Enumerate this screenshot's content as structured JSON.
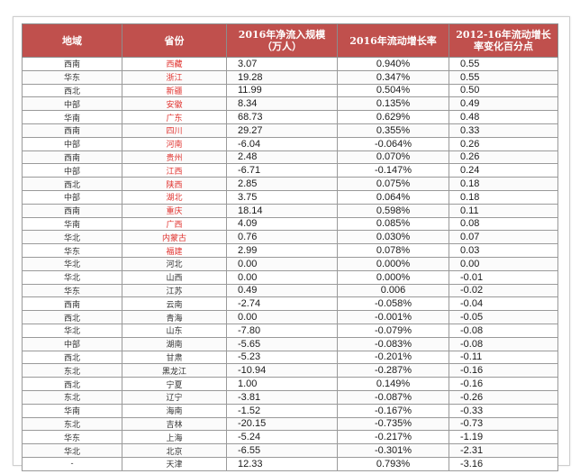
{
  "headers": [
    "地域",
    "省份",
    "2016年净流入规模（万人）",
    "2016年流动增长率",
    "2012-16年流动增长率变化百分点"
  ],
  "rows": [
    {
      "region": "西南",
      "province": "西藏",
      "net": "3.07",
      "rate": "0.940%",
      "change": "0.55",
      "hl": true
    },
    {
      "region": "华东",
      "province": "浙江",
      "net": "19.28",
      "rate": "0.347%",
      "change": "0.55",
      "hl": true
    },
    {
      "region": "西北",
      "province": "新疆",
      "net": "11.99",
      "rate": "0.504%",
      "change": "0.50",
      "hl": true
    },
    {
      "region": "中部",
      "province": "安徽",
      "net": "8.34",
      "rate": "0.135%",
      "change": "0.49",
      "hl": true
    },
    {
      "region": "华南",
      "province": "广东",
      "net": "68.73",
      "rate": "0.629%",
      "change": "0.48",
      "hl": true
    },
    {
      "region": "西南",
      "province": "四川",
      "net": "29.27",
      "rate": "0.355%",
      "change": "0.33",
      "hl": true
    },
    {
      "region": "中部",
      "province": "河南",
      "net": "-6.04",
      "rate": "-0.064%",
      "change": "0.26",
      "hl": true
    },
    {
      "region": "西南",
      "province": "贵州",
      "net": "2.48",
      "rate": "0.070%",
      "change": "0.26",
      "hl": true
    },
    {
      "region": "中部",
      "province": "江西",
      "net": "-6.71",
      "rate": "-0.147%",
      "change": "0.24",
      "hl": true
    },
    {
      "region": "西北",
      "province": "陕西",
      "net": "2.85",
      "rate": "0.075%",
      "change": "0.18",
      "hl": true
    },
    {
      "region": "中部",
      "province": "湖北",
      "net": "3.75",
      "rate": "0.064%",
      "change": "0.18",
      "hl": true
    },
    {
      "region": "西南",
      "province": "重庆",
      "net": "18.14",
      "rate": "0.598%",
      "change": "0.11",
      "hl": true
    },
    {
      "region": "华南",
      "province": "广西",
      "net": "4.09",
      "rate": "0.085%",
      "change": "0.08",
      "hl": true
    },
    {
      "region": "华北",
      "province": "内蒙古",
      "net": "0.76",
      "rate": "0.030%",
      "change": "0.07",
      "hl": true
    },
    {
      "region": "华东",
      "province": "福建",
      "net": "2.99",
      "rate": "0.078%",
      "change": "0.03",
      "hl": true
    },
    {
      "region": "华北",
      "province": "河北",
      "net": "0.00",
      "rate": "0.000%",
      "change": "0.00",
      "hl": false
    },
    {
      "region": "华北",
      "province": "山西",
      "net": "0.00",
      "rate": "0.000%",
      "change": "-0.01",
      "hl": false
    },
    {
      "region": "华东",
      "province": "江苏",
      "net": "0.49",
      "rate": "0.006",
      "change": "-0.02",
      "hl": false
    },
    {
      "region": "西南",
      "province": "云南",
      "net": "-2.74",
      "rate": "-0.058%",
      "change": "-0.04",
      "hl": false
    },
    {
      "region": "西北",
      "province": "青海",
      "net": "0.00",
      "rate": "-0.001%",
      "change": "-0.05",
      "hl": false
    },
    {
      "region": "华北",
      "province": "山东",
      "net": "-7.80",
      "rate": "-0.079%",
      "change": "-0.08",
      "hl": false
    },
    {
      "region": "中部",
      "province": "湖南",
      "net": "-5.65",
      "rate": "-0.083%",
      "change": "-0.08",
      "hl": false
    },
    {
      "region": "西北",
      "province": "甘肃",
      "net": "-5.23",
      "rate": "-0.201%",
      "change": "-0.11",
      "hl": false
    },
    {
      "region": "东北",
      "province": "黑龙江",
      "net": "-10.94",
      "rate": "-0.287%",
      "change": "-0.16",
      "hl": false
    },
    {
      "region": "西北",
      "province": "宁夏",
      "net": "1.00",
      "rate": "0.149%",
      "change": "-0.16",
      "hl": false
    },
    {
      "region": "东北",
      "province": "辽宁",
      "net": "-3.81",
      "rate": "-0.087%",
      "change": "-0.26",
      "hl": false
    },
    {
      "region": "华南",
      "province": "海南",
      "net": "-1.52",
      "rate": "-0.167%",
      "change": "-0.33",
      "hl": false
    },
    {
      "region": "东北",
      "province": "吉林",
      "net": "-20.15",
      "rate": "-0.735%",
      "change": "-0.73",
      "hl": false
    },
    {
      "region": "华东",
      "province": "上海",
      "net": "-5.24",
      "rate": "-0.217%",
      "change": "-1.19",
      "hl": false
    },
    {
      "region": "华北",
      "province": "北京",
      "net": "-6.55",
      "rate": "-0.301%",
      "change": "-2.31",
      "hl": false
    },
    {
      "region": "-",
      "province": "天津",
      "net": "12.33",
      "rate": "0.793%",
      "change": "-3.16",
      "hl": false
    }
  ]
}
